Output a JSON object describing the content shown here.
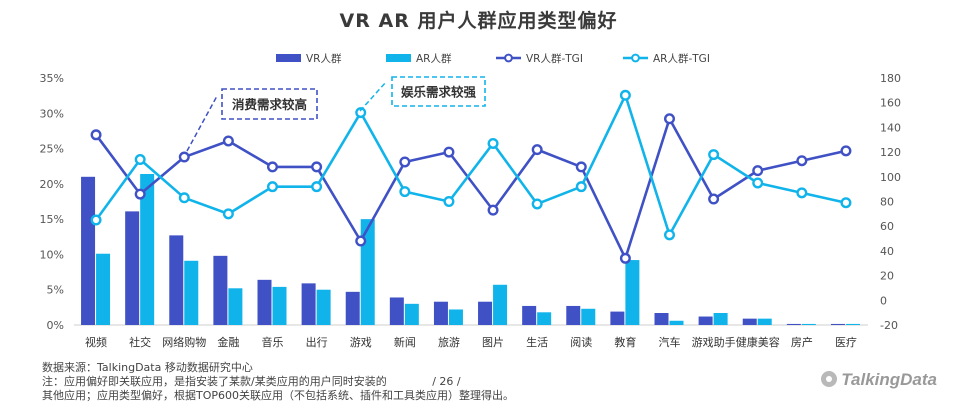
{
  "chart_data": {
    "type": "bar",
    "title": "VR  AR  用户人群应用类型偏好",
    "categories": [
      "视频",
      "社交",
      "网络购物",
      "金融",
      "音乐",
      "出行",
      "游戏",
      "新闻",
      "旅游",
      "图片",
      "生活",
      "阅读",
      "教育",
      "汽车",
      "游戏助手",
      "健康美容",
      "房产",
      "医疗"
    ],
    "series": [
      {
        "name": "VR人群",
        "kind": "bar",
        "axis": "left",
        "color": "#3f51c5",
        "values": [
          21.0,
          16.1,
          12.7,
          9.8,
          6.4,
          5.9,
          4.7,
          3.9,
          3.3,
          3.3,
          2.7,
          2.7,
          1.9,
          1.7,
          1.2,
          0.9,
          0.15,
          0.15
        ]
      },
      {
        "name": "AR人群",
        "kind": "bar",
        "axis": "left",
        "color": "#10b4ea",
        "values": [
          10.1,
          21.4,
          9.1,
          5.2,
          5.4,
          5.0,
          15.0,
          3.0,
          2.2,
          5.7,
          1.8,
          2.3,
          9.2,
          0.6,
          1.7,
          0.9,
          0.15,
          0.15
        ]
      },
      {
        "name": "VR人群-TGI",
        "kind": "line",
        "axis": "right",
        "color": "#3f51c5",
        "values": [
          134,
          86,
          116,
          129,
          108,
          108,
          48,
          112,
          120,
          73,
          122,
          108,
          34,
          147,
          82,
          105,
          113,
          121
        ]
      },
      {
        "name": "AR人群-TGI",
        "kind": "line",
        "axis": "right",
        "color": "#10b4ea",
        "values": [
          65,
          114,
          83,
          70,
          92,
          92,
          152,
          88,
          80,
          127,
          78,
          92,
          166,
          53,
          118,
          95,
          87,
          79
        ]
      }
    ],
    "ylim": [
      0,
      35
    ],
    "yticks": [
      "0%",
      "5%",
      "10%",
      "15%",
      "20%",
      "25%",
      "30%",
      "35%"
    ],
    "y2lim": [
      -20,
      180
    ],
    "y2ticks": [
      "-20",
      "0",
      "20",
      "40",
      "60",
      "80",
      "100",
      "120",
      "140",
      "160",
      "180"
    ],
    "legend_position": "top",
    "annotations": [
      {
        "text": "消费需求较高",
        "color": "#3f51c5",
        "target_category": "网络购物"
      },
      {
        "text": "娱乐需求较强",
        "color": "#10b4ea",
        "target_category": "社交"
      }
    ]
  },
  "footer": {
    "source": "数据来源：TalkingData 移动数据研究中心",
    "note1": "注：应用偏好即关联应用，是指安装了某款/某类应用的用户同时安装的",
    "page": "/ 26 /",
    "note2": "其他应用；应用类型偏好，根据TOP600关联应用（不包括系统、插件和工具类应用）整理得出。",
    "logo": "TalkingData"
  }
}
